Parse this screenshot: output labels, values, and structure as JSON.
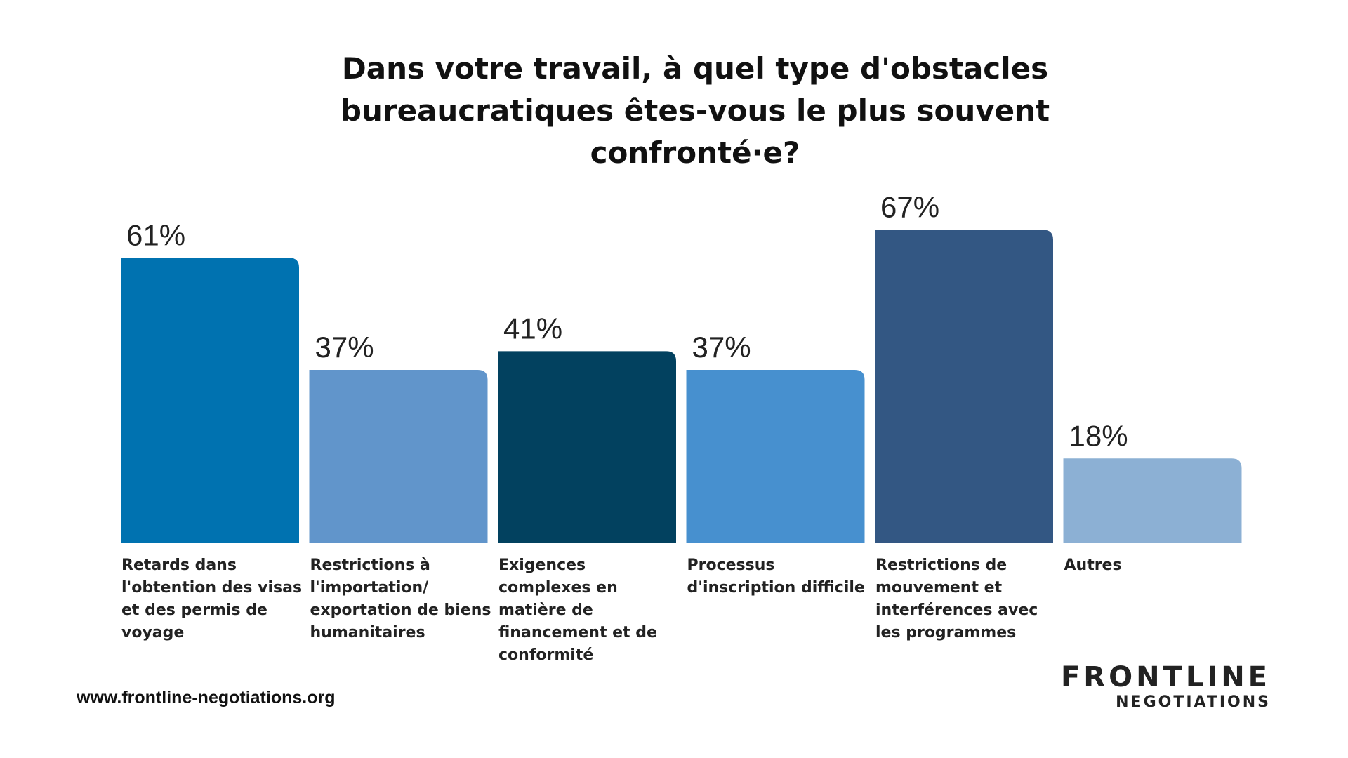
{
  "chart_data": {
    "type": "bar",
    "title": "Dans votre travail, à quel type d'obstacles bureaucratiques êtes-vous le plus souvent confronté·e?",
    "categories": [
      "Retards dans l'obtention des visas et des permis de voyage",
      "Restrictions à l'importation/ exportation de biens humanitaires",
      "Exigences complexes en matière de financement et de conformité",
      "Processus d'inscription difficile",
      "Restrictions de mouvement et interférences avec les programmes",
      "Autres"
    ],
    "values": [
      61,
      37,
      41,
      37,
      67,
      18
    ],
    "value_labels": [
      "61%",
      "37%",
      "41%",
      "37%",
      "67%",
      "18%"
    ],
    "colors": [
      "#0072b0",
      "#6195cb",
      "#02415f",
      "#4790cf",
      "#335783",
      "#8cb0d4"
    ]
  },
  "footer": {
    "url": "www.frontline-negotiations.org",
    "logo_top": "FRONTLINE",
    "logo_bottom": "NEGOTIATIONS"
  }
}
